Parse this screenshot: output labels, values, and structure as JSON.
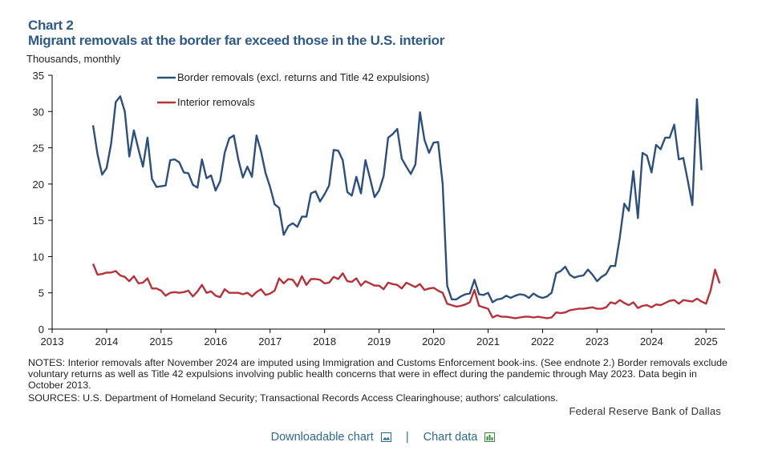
{
  "header": {
    "chart_label": "Chart 2",
    "title": "Migrant removals at the border far exceed those in the U.S. interior",
    "units": "Thousands, monthly"
  },
  "notes": "NOTES: Interior removals after November 2024 are imputed using Immigration and Customs Enforcement book-ins. (See endnote 2.) Border removals exclude voluntary returns as well as Title 42 expulsions involving public health concerns that were in effect during the pandemic through May 2023. Data begin in October 2013.",
  "sources": "SOURCES: U.S. Department of Homeland Security; Transactional Records Access Clearinghouse; authors' calculations.",
  "publisher": "Federal Reserve Bank of Dallas",
  "footer": {
    "download_label": "Downloadable chart",
    "separator": "|",
    "data_label": "Chart data"
  },
  "chart_data": {
    "type": "line",
    "xlim": [
      2013,
      2025.35
    ],
    "ylim": [
      0,
      35
    ],
    "x_ticks": [
      "2013",
      "2014",
      "2015",
      "2016",
      "2017",
      "2018",
      "2019",
      "2020",
      "2021",
      "2022",
      "2023",
      "2024",
      "2025"
    ],
    "y_ticks": [
      "0",
      "5",
      "10",
      "15",
      "20",
      "25",
      "30",
      "35"
    ],
    "x_start": "2013-10",
    "grid": false,
    "legend_placement": "top",
    "series": [
      {
        "name": "Border removals (excl. returns and Title 42 expulsions)",
        "color": "#2c4f7c",
        "values": [
          28.1,
          24.1,
          21.3,
          22.2,
          25.6,
          31.3,
          32.1,
          30.0,
          23.8,
          27.4,
          24.8,
          22.4,
          26.4,
          20.7,
          19.6,
          19.7,
          19.8,
          23.3,
          23.4,
          23.0,
          21.6,
          21.5,
          19.9,
          19.5,
          23.4,
          20.8,
          21.2,
          19.1,
          20.4,
          24.3,
          26.3,
          26.7,
          23.4,
          20.9,
          22.4,
          21.0,
          26.7,
          24.5,
          21.5,
          19.6,
          17.2,
          16.7,
          13.0,
          14.2,
          14.6,
          14.1,
          15.5,
          15.5,
          18.7,
          19.0,
          17.6,
          18.6,
          19.8,
          24.7,
          24.6,
          23.3,
          18.9,
          18.4,
          21.0,
          18.7,
          23.3,
          20.8,
          18.2,
          19.1,
          21.1,
          26.4,
          26.9,
          27.6,
          23.5,
          22.4,
          21.4,
          22.7,
          29.9,
          26.1,
          24.3,
          25.7,
          25.8,
          20.0,
          6.0,
          4.1,
          4.1,
          4.5,
          4.8,
          4.9,
          6.8,
          4.8,
          4.7,
          5.0,
          3.7,
          4.1,
          4.2,
          4.6,
          4.3,
          4.6,
          4.8,
          4.7,
          4.3,
          4.9,
          4.5,
          4.3,
          4.5,
          5.0,
          7.7,
          8.0,
          8.6,
          7.5,
          7.1,
          7.3,
          7.4,
          8.2,
          7.5,
          6.6,
          7.2,
          7.6,
          8.7,
          8.7,
          12.6,
          17.3,
          16.3,
          21.8,
          15.3,
          24.3,
          23.9,
          21.6,
          25.4,
          24.8,
          26.4,
          26.4,
          28.2,
          23.4,
          23.6,
          20.4,
          17.1,
          31.7,
          21.9
        ]
      },
      {
        "name": "Interior removals",
        "color": "#b5323a",
        "values": [
          9.0,
          7.5,
          7.6,
          7.8,
          7.8,
          8.0,
          7.4,
          7.2,
          6.6,
          7.3,
          6.3,
          6.4,
          7.0,
          5.6,
          5.6,
          5.3,
          4.6,
          5.0,
          5.1,
          5.0,
          5.1,
          5.3,
          4.5,
          5.2,
          6.1,
          5.0,
          5.2,
          4.6,
          4.4,
          5.5,
          5.0,
          5.0,
          5.0,
          4.8,
          5.0,
          4.5,
          5.1,
          5.5,
          4.7,
          4.9,
          5.3,
          7.0,
          6.3,
          6.9,
          6.8,
          5.9,
          7.3,
          6.1,
          6.9,
          6.9,
          6.8,
          6.3,
          6.4,
          7.2,
          6.9,
          7.7,
          6.6,
          6.5,
          7.0,
          6.0,
          6.6,
          6.3,
          6.0,
          6.0,
          5.5,
          6.4,
          6.2,
          6.1,
          5.6,
          6.4,
          6.1,
          5.8,
          6.2,
          5.4,
          5.6,
          5.7,
          5.3,
          5.0,
          3.5,
          3.3,
          3.1,
          3.2,
          3.4,
          3.7,
          5.4,
          3.2,
          3.0,
          2.8,
          1.6,
          1.9,
          1.7,
          1.7,
          1.6,
          1.5,
          1.6,
          1.7,
          1.7,
          1.6,
          1.7,
          1.6,
          1.5,
          1.6,
          2.3,
          2.2,
          2.3,
          2.6,
          2.7,
          2.8,
          2.8,
          2.9,
          3.0,
          2.8,
          2.8,
          3.0,
          3.7,
          3.5,
          4.0,
          3.6,
          3.3,
          3.7,
          2.9,
          3.2,
          3.3,
          3.0,
          3.4,
          3.3,
          3.6,
          3.9,
          4.0,
          3.5,
          4.0,
          3.9,
          3.8,
          4.2,
          3.8,
          3.5,
          5.3,
          8.2,
          6.3
        ]
      }
    ]
  }
}
